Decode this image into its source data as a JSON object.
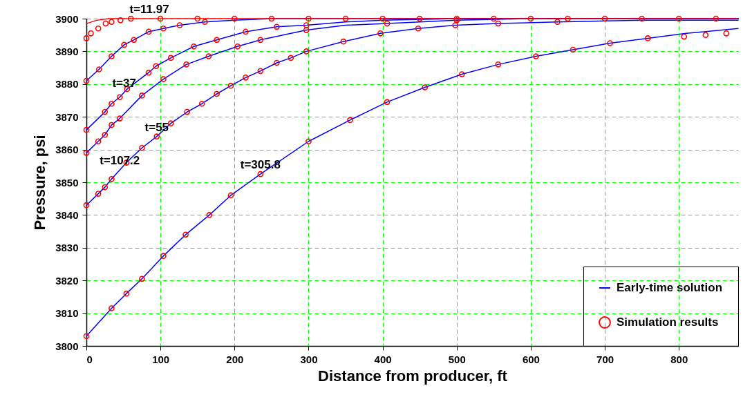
{
  "chart_data": {
    "type": "line",
    "xlabel": "Distance from producer, ft",
    "ylabel": "Pressure, psi",
    "xlim": [
      0,
      880
    ],
    "xticks": [
      0,
      100,
      200,
      300,
      400,
      500,
      600,
      700,
      800
    ],
    "ylim": [
      3800,
      3900
    ],
    "yticks": [
      3800,
      3810,
      3820,
      3830,
      3840,
      3850,
      3860,
      3870,
      3880,
      3890,
      3900
    ],
    "grid": true,
    "legend": "bottom right",
    "line_style": "solid",
    "marker": "none",
    "annotations": [
      {
        "text": "t=11.97",
        "x": 85,
        "y": 3900
      },
      {
        "text": "t=37",
        "x": 51,
        "y": 3877.5
      },
      {
        "text": "t=55",
        "x": 95,
        "y": 3864
      },
      {
        "text": "t=107.2",
        "x": 45,
        "y": 3853.75
      },
      {
        "text": "t=305.8",
        "x": 235,
        "y": 3852.5
      }
    ],
    "series": [
      {
        "type": "line",
        "color": "#ff0000",
        "x": [
          0,
          14,
          30,
          880
        ],
        "values": [
          3898.5,
          3899.5,
          3900,
          3900
        ]
      },
      {
        "type": "line",
        "name": "Early-time solution",
        "color": "#0000ff",
        "x": [
          0,
          17,
          34,
          51,
          64,
          84,
          104,
          126,
          160,
          200,
          250,
          880
        ],
        "values": [
          3881,
          3884.5,
          3888.5,
          3892,
          3893.5,
          3896,
          3897,
          3898,
          3899,
          3899.5,
          3900,
          3900
        ]
      },
      {
        "type": "line",
        "color": "#0000ff",
        "x": [
          0,
          25,
          34,
          45,
          55,
          84,
          94,
          114,
          145,
          176,
          215,
          257,
          297,
          350,
          400,
          500,
          880
        ],
        "values": [
          3866,
          3871.5,
          3874,
          3876,
          3878.5,
          3883.5,
          3885.5,
          3888,
          3891.5,
          3893.5,
          3896,
          3897.5,
          3898,
          3899,
          3899.5,
          3900,
          3900
        ]
      },
      {
        "type": "line",
        "color": "#0000ff",
        "x": [
          0,
          16,
          25,
          34,
          45,
          75,
          104,
          135,
          165,
          204,
          235,
          297,
          350,
          406,
          500,
          600,
          880
        ],
        "values": [
          3859,
          3862.5,
          3864.5,
          3867.5,
          3869.5,
          3876.5,
          3881.5,
          3886,
          3888.5,
          3891.5,
          3893.5,
          3896.5,
          3898,
          3898.5,
          3899.5,
          3900,
          3900
        ]
      },
      {
        "type": "line",
        "color": "#0000ff",
        "x": [
          0,
          16,
          25,
          34,
          54,
          75,
          95,
          114,
          136,
          156,
          176,
          195,
          215,
          235,
          257,
          276,
          297,
          347,
          397,
          448,
          498,
          556,
          636,
          750,
          880
        ],
        "values": [
          3843,
          3846.5,
          3848.5,
          3851,
          3856,
          3860.5,
          3864,
          3868,
          3871.5,
          3874,
          3877,
          3879.5,
          3882,
          3884,
          3886.5,
          3888,
          3890,
          3893,
          3895.5,
          3897,
          3898,
          3898.5,
          3899,
          3899.5,
          3899.5
        ]
      },
      {
        "type": "line",
        "color": "#0000ff",
        "x": [
          0,
          34,
          54,
          75,
          104,
          134,
          166,
          195,
          235,
          300,
          356,
          406,
          457,
          507,
          556,
          607,
          657,
          707,
          758,
          810,
          880
        ],
        "values": [
          3803,
          3811.5,
          3816,
          3820.5,
          3827.5,
          3834,
          3840,
          3846,
          3852.5,
          3862.5,
          3869,
          3874.5,
          3879,
          3883,
          3886,
          3888.5,
          3890.5,
          3892.5,
          3894,
          3895.5,
          3897
        ]
      },
      {
        "type": "scatter",
        "name": "Simulation results",
        "color": "#ff0000",
        "x": [
          0,
          6,
          16,
          26,
          34,
          46,
          60,
          100,
          150,
          200,
          250,
          300,
          350,
          400,
          450,
          500,
          550,
          600,
          650,
          700,
          750,
          800,
          850,
          0,
          17,
          34,
          51,
          64,
          84,
          104,
          126,
          160,
          0,
          25,
          34,
          45,
          55,
          84,
          94,
          114,
          145,
          176,
          215,
          257,
          297,
          0,
          16,
          25,
          34,
          45,
          75,
          104,
          135,
          165,
          204,
          235,
          297,
          406,
          500,
          0,
          16,
          25,
          34,
          54,
          75,
          95,
          114,
          136,
          156,
          176,
          195,
          215,
          235,
          257,
          276,
          297,
          347,
          397,
          448,
          498,
          556,
          636,
          0,
          34,
          54,
          75,
          104,
          134,
          166,
          195,
          235,
          300,
          356,
          406,
          457,
          507,
          556,
          607,
          657,
          707,
          758,
          807,
          836,
          864
        ],
        "values": [
          3894,
          3895.5,
          3897,
          3898.5,
          3899,
          3899.5,
          3900,
          3900,
          3900,
          3900,
          3900,
          3900,
          3900,
          3900,
          3900,
          3900,
          3900,
          3900,
          3900,
          3900,
          3900,
          3900,
          3900,
          3881,
          3884.5,
          3888.5,
          3892,
          3893.5,
          3896,
          3897,
          3898,
          3899,
          3866,
          3871.5,
          3874,
          3876,
          3878.5,
          3883.5,
          3885.5,
          3888,
          3891.5,
          3893.5,
          3896,
          3897.5,
          3898,
          3859,
          3862.5,
          3864.5,
          3867.5,
          3869.5,
          3876.5,
          3881.5,
          3886,
          3888.5,
          3891.5,
          3893.5,
          3896.5,
          3898.5,
          3899.5,
          3843,
          3846.5,
          3848.5,
          3851,
          3856,
          3860.5,
          3864,
          3868,
          3871.5,
          3874,
          3877,
          3879.5,
          3882,
          3884,
          3886.5,
          3888,
          3890,
          3893,
          3895.5,
          3897,
          3898,
          3898.5,
          3899,
          3803,
          3811.5,
          3816,
          3820.5,
          3827.5,
          3834,
          3840,
          3846,
          3852.5,
          3862.5,
          3869,
          3874.5,
          3879,
          3883,
          3886,
          3888.5,
          3890.5,
          3892.5,
          3894,
          3894.5,
          3895,
          3895.5
        ]
      }
    ]
  }
}
